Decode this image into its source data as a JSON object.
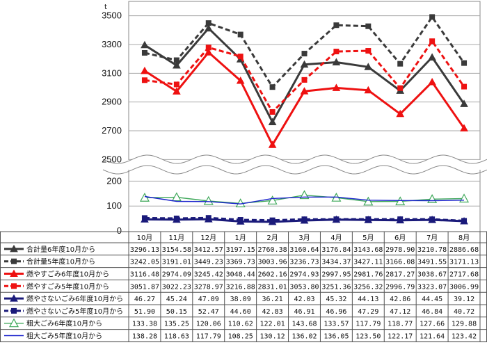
{
  "chart_data": {
    "type": "line",
    "unit_mark": "t",
    "categories": [
      "10月",
      "11月",
      "12月",
      "1月",
      "2月",
      "3月",
      "4月",
      "5月",
      "6月",
      "7月",
      "8月"
    ],
    "upper_axis": {
      "ylim": [
        2400,
        3600
      ],
      "ticks": [
        2500,
        2700,
        2900,
        3100,
        3300,
        3500
      ]
    },
    "lower_axis": {
      "ylim": [
        0,
        240
      ],
      "ticks": [
        0,
        100,
        200
      ]
    },
    "series": [
      {
        "name": "合計量6年度10月から",
        "panel": "upper",
        "color": "#3a3a3a",
        "dash": false,
        "marker": "triangle-filled",
        "values": [
          3296.13,
          3154.58,
          3412.57,
          3197.15,
          2760.38,
          3160.64,
          3176.84,
          3143.68,
          2978.9,
          3210.78,
          2886.68
        ]
      },
      {
        "name": "合計量5年度10月から",
        "panel": "upper",
        "color": "#3a3a3a",
        "dash": true,
        "marker": "square-filled",
        "values": [
          3242.05,
          3191.01,
          3449.23,
          3369.73,
          3003.96,
          3236.73,
          3434.37,
          3427.11,
          3166.08,
          3491.55,
          3171.13
        ]
      },
      {
        "name": "燃やすごみ6年度10月から",
        "panel": "upper",
        "color": "#ee1111",
        "dash": false,
        "marker": "triangle-filled",
        "values": [
          3116.48,
          2974.09,
          3245.42,
          3048.44,
          2602.16,
          2974.93,
          2997.95,
          2981.76,
          2817.27,
          3038.67,
          2717.68
        ]
      },
      {
        "name": "燃やすごみ5年度10月から",
        "panel": "upper",
        "color": "#ee1111",
        "dash": true,
        "marker": "square-filled",
        "values": [
          3051.87,
          3022.23,
          3278.97,
          3216.88,
          2831.01,
          3053.8,
          3251.36,
          3256.32,
          2996.79,
          3323.07,
          3006.99
        ]
      },
      {
        "name": "燃やさないごみ6年度10月から",
        "panel": "lower",
        "color": "#1a1a7a",
        "dash": false,
        "marker": "triangle-filled",
        "values": [
          46.27,
          45.24,
          47.09,
          38.09,
          36.21,
          42.03,
          45.32,
          44.13,
          42.86,
          44.45,
          39.12
        ]
      },
      {
        "name": "燃やさないごみ5年度10月から",
        "panel": "lower",
        "color": "#1a1a7a",
        "dash": true,
        "marker": "square-filled",
        "values": [
          51.9,
          50.15,
          52.47,
          44.6,
          42.83,
          46.91,
          46.96,
          47.29,
          47.12,
          46.84,
          40.72
        ]
      },
      {
        "name": "粗大ごみ6年度10月から",
        "panel": "lower",
        "color": "#3fa85a",
        "dash": false,
        "marker": "triangle-open",
        "values": [
          133.38,
          135.25,
          120.06,
          110.62,
          122.01,
          143.68,
          133.57,
          117.79,
          118.77,
          127.66,
          129.88
        ]
      },
      {
        "name": "粗大ごみ5年度10月から",
        "panel": "lower",
        "color": "#1a22cc",
        "dash": false,
        "marker": "none",
        "values": [
          138.28,
          118.63,
          117.79,
          108.25,
          130.12,
          136.02,
          136.05,
          123.5,
          122.17,
          121.64,
          123.42
        ]
      }
    ]
  }
}
